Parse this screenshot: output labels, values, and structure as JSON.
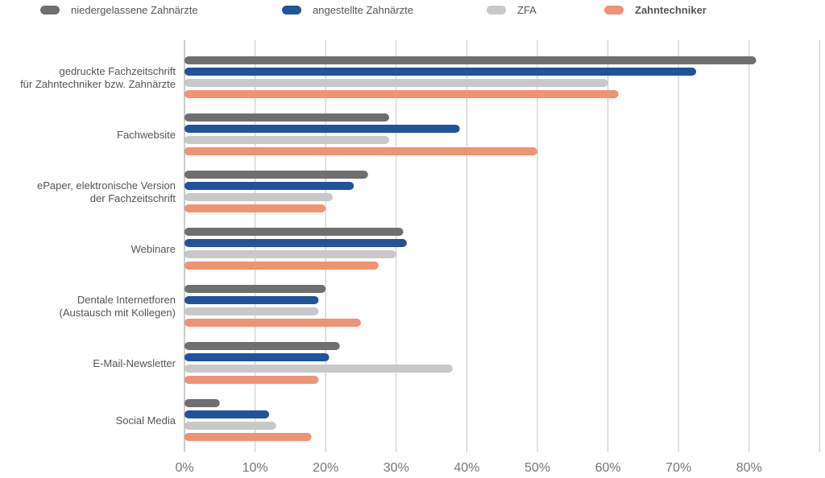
{
  "chart_data": {
    "type": "bar",
    "orientation": "horizontal",
    "title": "",
    "xlabel": "",
    "ylabel": "",
    "xlim": [
      0,
      90
    ],
    "grid": true,
    "legend_position": "top",
    "tick_labels": [
      "0%",
      "10%",
      "20%",
      "30%",
      "40%",
      "50%",
      "60%",
      "70%",
      "80%"
    ],
    "categories": [
      [
        "gedruckte Fachzeitschrift",
        "für Zahntechniker bzw. Zahnärzte"
      ],
      [
        "Fachwebsite"
      ],
      [
        "ePaper, elektronische Version",
        "der Fachzeitschrift"
      ],
      [
        "Webinare"
      ],
      [
        "Dentale Internetforen",
        "(Austausch mit Kollegen)"
      ],
      [
        "E-Mail-Newsletter"
      ],
      [
        "Social Media"
      ]
    ],
    "series": [
      {
        "name": "niedergelassene Zahnärzte",
        "color": "#6f6f6f",
        "bold": false,
        "values": [
          81,
          29,
          26,
          31,
          20,
          22,
          5
        ]
      },
      {
        "name": "angestellte Zahnärzte",
        "color": "#22529a",
        "bold": false,
        "values": [
          72.5,
          39,
          24,
          31.5,
          19,
          20.5,
          12
        ]
      },
      {
        "name": "ZFA",
        "color": "#c8c8c8",
        "bold": false,
        "values": [
          60,
          29,
          21,
          30,
          19,
          38,
          13
        ]
      },
      {
        "name": "Zahntechniker",
        "color": "#ee9373",
        "bold": true,
        "values": [
          61.5,
          50,
          20,
          27.5,
          25,
          19,
          18
        ]
      }
    ]
  }
}
